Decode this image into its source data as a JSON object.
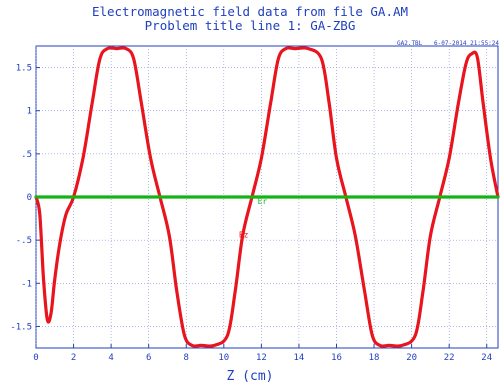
{
  "header": {
    "title_line1": "Electromagnetic field data from file GA.AM",
    "title_line2": "Problem title line 1: GA-ZBG",
    "stamp_file": "GA2.TBL",
    "stamp_date": "6-07-2014  21:55:24"
  },
  "chart_data": {
    "type": "line",
    "xlabel": "Z (cm)",
    "ylabel": "",
    "xlim": [
      0,
      24.6
    ],
    "ylim": [
      -1.75,
      1.75
    ],
    "grid": true,
    "x_ticks": [
      0,
      2,
      4,
      6,
      8,
      10,
      12,
      14,
      16,
      18,
      20,
      22,
      24
    ],
    "x_tick_labels": [
      "0",
      "2",
      "4",
      "6",
      "8",
      "10",
      "12",
      "14",
      "16",
      "18",
      "20",
      "22",
      "24"
    ],
    "y_ticks": [
      1.5,
      1,
      0.5,
      0,
      -0.5,
      -1,
      -1.5
    ],
    "y_tick_labels": [
      "1.5",
      "1",
      ".5",
      "0",
      "-.5",
      "-1",
      "-1.5"
    ],
    "series": [
      {
        "name": "Ez",
        "color": "#e8141e",
        "x": [
          0,
          0.2,
          0.4,
          0.6,
          0.8,
          1.0,
          1.3,
          1.6,
          2.0,
          2.5,
          3.0,
          3.4,
          3.8,
          4.3,
          4.8,
          5.2,
          5.6,
          6.1,
          6.6,
          7.1,
          7.5,
          7.9,
          8.3,
          8.8,
          9.5,
          10.2,
          10.6,
          11.0,
          11.5,
          12.0,
          12.5,
          12.9,
          13.3,
          13.8,
          14.5,
          15.2,
          15.6,
          16.0,
          16.5,
          17.0,
          17.5,
          17.9,
          18.3,
          18.8,
          19.5,
          20.2,
          20.6,
          21.0,
          21.5,
          22.0,
          22.5,
          22.9,
          23.2,
          23.5,
          23.8,
          24.2,
          24.6
        ],
        "y": [
          0,
          -0.2,
          -0.95,
          -1.42,
          -1.35,
          -0.95,
          -0.5,
          -0.2,
          0,
          0.45,
          1.1,
          1.6,
          1.72,
          1.72,
          1.72,
          1.6,
          1.1,
          0.45,
          0,
          -0.45,
          -1.1,
          -1.6,
          -1.72,
          -1.72,
          -1.72,
          -1.6,
          -1.1,
          -0.45,
          0,
          0.45,
          1.1,
          1.6,
          1.72,
          1.72,
          1.72,
          1.6,
          1.1,
          0.45,
          0,
          -0.45,
          -1.1,
          -1.6,
          -1.72,
          -1.72,
          -1.72,
          -1.6,
          -1.1,
          -0.45,
          0,
          0.45,
          1.1,
          1.55,
          1.66,
          1.62,
          1.1,
          0.45,
          0
        ]
      },
      {
        "name": "Er",
        "color": "#14b414",
        "x": [
          0,
          24.6
        ],
        "y": [
          0,
          0
        ]
      }
    ],
    "annotations": [
      {
        "text": "Er",
        "x": 11.8,
        "y": -0.08,
        "color": "#14b414"
      },
      {
        "text": "Ez",
        "x": 10.8,
        "y": -0.47,
        "color": "#e8141e"
      }
    ]
  }
}
